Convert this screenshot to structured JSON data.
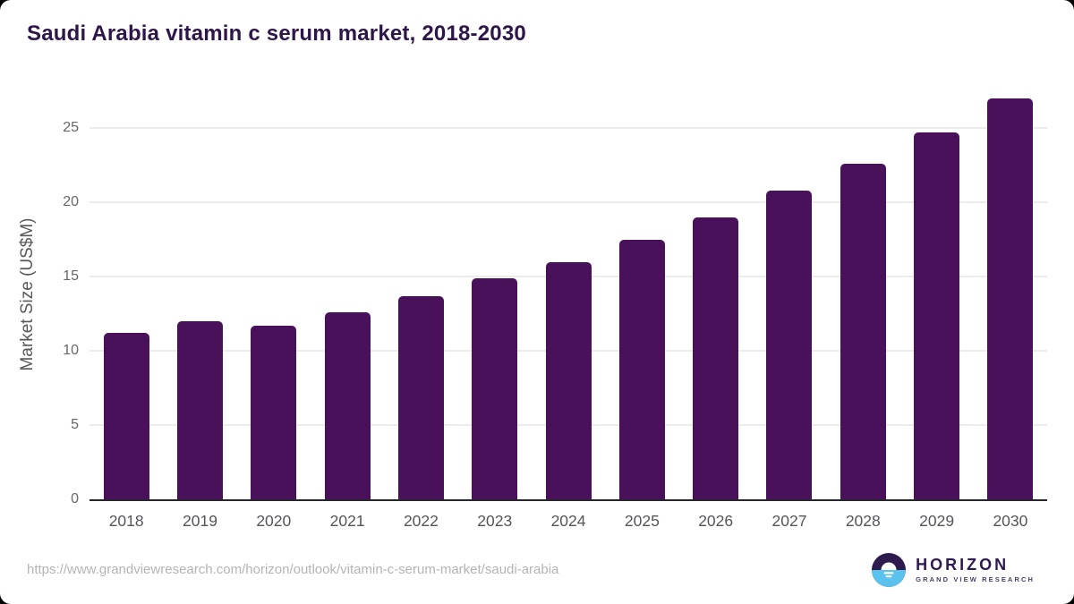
{
  "title": "Saudi Arabia vitamin c serum market, 2018-2030",
  "chart_data": {
    "type": "bar",
    "title": "Saudi Arabia vitamin c serum market, 2018-2030",
    "categories": [
      "2018",
      "2019",
      "2020",
      "2021",
      "2022",
      "2023",
      "2024",
      "2025",
      "2026",
      "2027",
      "2028",
      "2029",
      "2030"
    ],
    "values": [
      11.2,
      12.0,
      11.7,
      12.6,
      13.7,
      14.9,
      16.0,
      17.5,
      19.0,
      20.8,
      22.6,
      24.7,
      27.0
    ],
    "xlabel": "",
    "ylabel": "Market Size (US$M)",
    "ylim": [
      0,
      27.6
    ],
    "yticks": [
      0,
      5,
      10,
      15,
      20,
      25
    ],
    "grid": "horizontal",
    "legend": "none",
    "bar_color": "#481159",
    "axis_line_color": "#27262b",
    "gridline_color": "#ececec",
    "tick_label_color": "#66666b"
  },
  "footer": {
    "source_url": "https://www.grandviewresearch.com/horizon/outlook/vitamin-c-serum-market/saudi-arabia",
    "logo": {
      "name": "HORIZON",
      "subtitle": "GRAND VIEW RESEARCH",
      "mark_top_color": "#2d1b4e",
      "mark_bottom_color": "#5bc2ee"
    }
  },
  "colors": {
    "title": "#2e164a",
    "background": "#ffffff"
  }
}
